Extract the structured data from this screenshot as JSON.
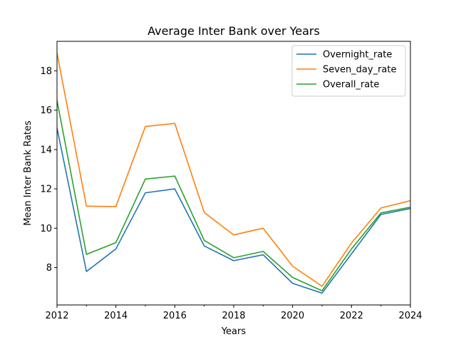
{
  "chart_data": {
    "type": "line",
    "title": "Average Inter Bank over Years",
    "xlabel": "Years",
    "ylabel": "Mean Inter Bank Rates",
    "x": [
      2012,
      2013,
      2014,
      2015,
      2016,
      2017,
      2018,
      2019,
      2020,
      2021,
      2022,
      2023,
      2024
    ],
    "xlim": [
      2012,
      2024
    ],
    "ylim": [
      6.1,
      19.5
    ],
    "xticks": [
      2012,
      2014,
      2016,
      2018,
      2020,
      2022,
      2024
    ],
    "xticks_minor": [
      2013,
      2015,
      2017,
      2019,
      2021,
      2023
    ],
    "yticks": [
      8,
      10,
      12,
      14,
      16,
      18
    ],
    "grid": false,
    "legend_position": "top-right",
    "series": [
      {
        "name": "Overnight_rate",
        "color": "#1f77b4",
        "values": [
          15.1,
          7.8,
          8.95,
          11.8,
          12.0,
          9.1,
          8.35,
          8.65,
          7.2,
          6.7,
          8.7,
          10.7,
          11.0
        ]
      },
      {
        "name": "Seven_day_rate",
        "color": "#ff7f0e",
        "values": [
          18.9,
          11.12,
          11.1,
          15.17,
          15.33,
          10.8,
          9.66,
          10.0,
          8.07,
          7.05,
          9.25,
          11.03,
          11.4
        ]
      },
      {
        "name": "Overall_rate",
        "color": "#2ca02c",
        "values": [
          16.5,
          8.67,
          9.27,
          12.5,
          12.65,
          9.38,
          8.5,
          8.82,
          7.5,
          6.82,
          8.95,
          10.78,
          11.07
        ]
      }
    ]
  }
}
